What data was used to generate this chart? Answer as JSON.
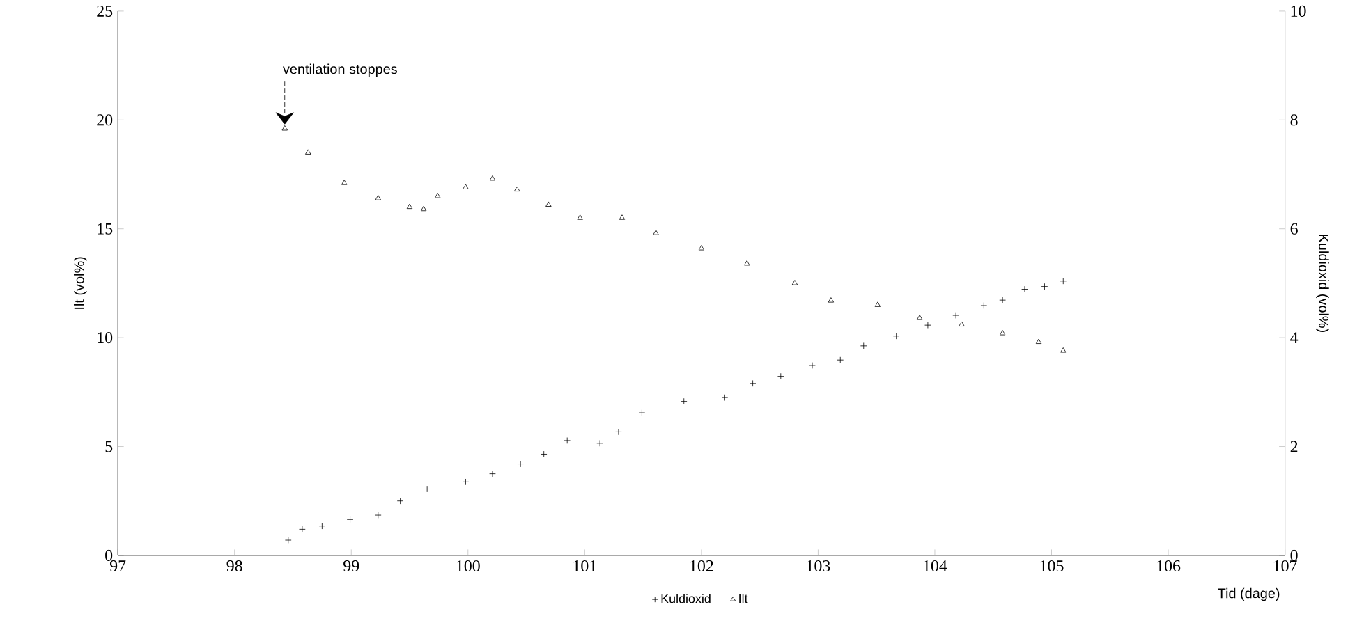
{
  "chart_data": {
    "type": "scatter",
    "xlabel": "Tid (dage)",
    "ylabel": "Ilt (vol%)",
    "y2label": "Kuldioxid (vol%)",
    "xlim": [
      97,
      107
    ],
    "xticks": [
      97,
      98,
      99,
      100,
      101,
      102,
      103,
      104,
      105,
      106,
      107
    ],
    "ylim": [
      0,
      25
    ],
    "yticks": [
      0,
      5,
      10,
      15,
      20,
      25
    ],
    "y2lim": [
      0,
      10
    ],
    "y2ticks": [
      0,
      2,
      4,
      6,
      8,
      10
    ],
    "grid": false,
    "legend": "bottom",
    "annotations": [
      {
        "text": "ventilation stoppes",
        "x": 98.43,
        "y": 19.6
      }
    ],
    "series": [
      {
        "name": "Kuldioxid",
        "color": "#000000",
        "marker": "cross",
        "axis": "y2",
        "x": [
          98.46,
          98.58,
          98.75,
          98.99,
          99.23,
          99.42,
          99.65,
          99.98,
          100.21,
          100.45,
          100.65,
          100.85,
          101.13,
          101.29,
          101.49,
          101.85,
          102.2,
          102.44,
          102.68,
          102.95,
          103.19,
          103.39,
          103.67,
          103.94,
          104.18,
          104.42,
          104.58,
          104.77,
          104.94,
          105.1
        ],
        "values": [
          0.28,
          0.48,
          0.54,
          0.66,
          0.74,
          1.0,
          1.22,
          1.35,
          1.5,
          1.68,
          1.86,
          2.11,
          2.06,
          2.27,
          2.62,
          2.83,
          2.9,
          3.16,
          3.29,
          3.49,
          3.59,
          3.85,
          4.03,
          4.23,
          4.41,
          4.59,
          4.69,
          4.89,
          4.94,
          5.04
        ]
      },
      {
        "name": "Ilt",
        "color": "#000000",
        "marker": "triangle",
        "x": [
          98.43,
          98.63,
          98.94,
          99.23,
          99.5,
          99.62,
          99.74,
          99.98,
          100.21,
          100.42,
          100.69,
          100.96,
          101.32,
          101.61,
          102.0,
          102.39,
          102.8,
          103.11,
          103.51,
          103.87,
          104.23,
          104.58,
          104.89,
          105.1
        ],
        "values": [
          19.6,
          18.5,
          17.1,
          16.4,
          16.0,
          15.9,
          16.5,
          16.9,
          17.3,
          16.8,
          16.1,
          15.5,
          15.5,
          14.8,
          14.1,
          13.4,
          12.5,
          11.7,
          11.5,
          10.9,
          10.6,
          10.2,
          9.8,
          9.4
        ]
      }
    ]
  }
}
